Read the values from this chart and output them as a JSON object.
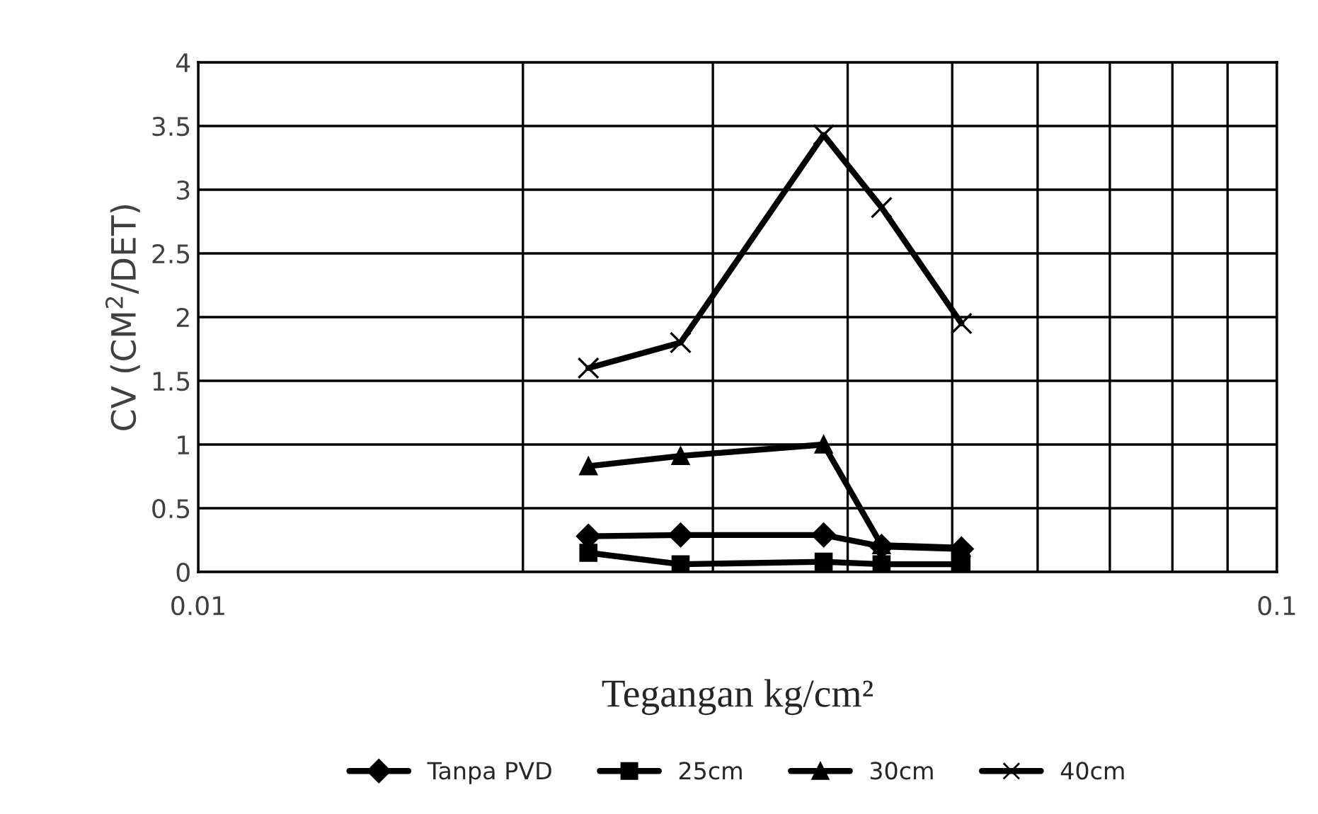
{
  "chart_data": {
    "type": "line",
    "xlabel": "Tegangan kg/cm²",
    "ylabel": "CV (CM$^{2}$/DET)",
    "log": "x",
    "xlim": [
      0.01,
      0.1
    ],
    "ylim": [
      0,
      4
    ],
    "xticks": [
      {
        "value": 0.01,
        "label": "0.01"
      },
      {
        "value": 0.02,
        "label": null
      },
      {
        "value": 0.03,
        "label": null
      },
      {
        "value": 0.04,
        "label": null
      },
      {
        "value": 0.05,
        "label": null
      },
      {
        "value": 0.06,
        "label": null
      },
      {
        "value": 0.07,
        "label": null
      },
      {
        "value": 0.08,
        "label": null
      },
      {
        "value": 0.09,
        "label": null
      },
      {
        "value": 0.1,
        "label": "0.1"
      }
    ],
    "yticks": [
      0,
      0.5,
      1,
      1.5,
      2,
      2.5,
      3,
      3.5,
      4
    ],
    "x": [
      0.023,
      0.028,
      0.038,
      0.043,
      0.051
    ],
    "grid": true,
    "legend": "bottom",
    "line_style": "solid",
    "series": [
      {
        "name": "Tanpa PVD",
        "color": "#000000",
        "marker": "diamond",
        "values": [
          0.28,
          0.29,
          0.29,
          0.2,
          0.18
        ]
      },
      {
        "name": "25cm",
        "color": "#000000",
        "marker": "square",
        "values": [
          0.15,
          0.06,
          0.08,
          0.06,
          0.06
        ]
      },
      {
        "name": "30cm",
        "color": "#000000",
        "marker": "triangle",
        "values": [
          0.83,
          0.91,
          1.0,
          0.21,
          0.19
        ]
      },
      {
        "name": "40cm",
        "color": "#000000",
        "marker": "cross",
        "values": [
          1.6,
          1.8,
          3.43,
          2.86,
          1.95
        ]
      }
    ]
  }
}
